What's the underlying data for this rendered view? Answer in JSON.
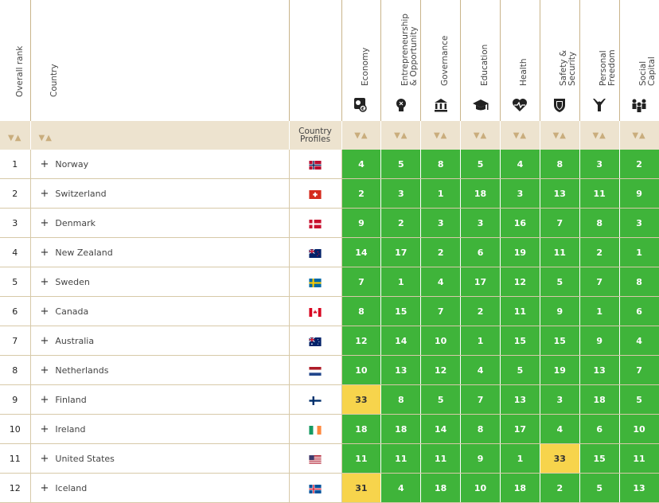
{
  "header": {
    "rank": "Overall rank",
    "country": "Country",
    "profiles": "Country Profiles",
    "sort_arrows": "▼▲"
  },
  "pillars": [
    {
      "label": "Economy",
      "icon": "economy-icon"
    },
    {
      "label": "Entrepreneurship\n& Opportunity",
      "icon": "lightbulb-icon"
    },
    {
      "label": "Governance",
      "icon": "government-building-icon"
    },
    {
      "label": "Education",
      "icon": "graduation-cap-icon"
    },
    {
      "label": "Health",
      "icon": "heart-pulse-icon"
    },
    {
      "label": "Safety &\nSecurity",
      "icon": "shield-icon"
    },
    {
      "label": "Personal\nFreedom",
      "icon": "freedom-person-icon"
    },
    {
      "label": "Social\nCapital",
      "icon": "people-group-icon"
    }
  ],
  "colors": {
    "green": "#3fb43a",
    "yellow": "#f7d44c"
  },
  "rows": [
    {
      "rank": "1",
      "country": "Norway",
      "flag": "norway-flag",
      "scores": [
        "4",
        "5",
        "8",
        "5",
        "4",
        "8",
        "3",
        "2"
      ],
      "highlight": []
    },
    {
      "rank": "2",
      "country": "Switzerland",
      "flag": "switzerland-flag",
      "scores": [
        "2",
        "3",
        "1",
        "18",
        "3",
        "13",
        "11",
        "9"
      ],
      "highlight": []
    },
    {
      "rank": "3",
      "country": "Denmark",
      "flag": "denmark-flag",
      "scores": [
        "9",
        "2",
        "3",
        "3",
        "16",
        "7",
        "8",
        "3"
      ],
      "highlight": []
    },
    {
      "rank": "4",
      "country": "New Zealand",
      "flag": "new-zealand-flag",
      "scores": [
        "14",
        "17",
        "2",
        "6",
        "19",
        "11",
        "2",
        "1"
      ],
      "highlight": []
    },
    {
      "rank": "5",
      "country": "Sweden",
      "flag": "sweden-flag",
      "scores": [
        "7",
        "1",
        "4",
        "17",
        "12",
        "5",
        "7",
        "8"
      ],
      "highlight": []
    },
    {
      "rank": "6",
      "country": "Canada",
      "flag": "canada-flag",
      "scores": [
        "8",
        "15",
        "7",
        "2",
        "11",
        "9",
        "1",
        "6"
      ],
      "highlight": []
    },
    {
      "rank": "7",
      "country": "Australia",
      "flag": "australia-flag",
      "scores": [
        "12",
        "14",
        "10",
        "1",
        "15",
        "15",
        "9",
        "4"
      ],
      "highlight": []
    },
    {
      "rank": "8",
      "country": "Netherlands",
      "flag": "netherlands-flag",
      "scores": [
        "10",
        "13",
        "12",
        "4",
        "5",
        "19",
        "13",
        "7"
      ],
      "highlight": []
    },
    {
      "rank": "9",
      "country": "Finland",
      "flag": "finland-flag",
      "scores": [
        "33",
        "8",
        "5",
        "7",
        "13",
        "3",
        "18",
        "5"
      ],
      "highlight": [
        0
      ]
    },
    {
      "rank": "10",
      "country": "Ireland",
      "flag": "ireland-flag",
      "scores": [
        "18",
        "18",
        "14",
        "8",
        "17",
        "4",
        "6",
        "10"
      ],
      "highlight": []
    },
    {
      "rank": "11",
      "country": "United States",
      "flag": "united-states-flag",
      "scores": [
        "11",
        "11",
        "11",
        "9",
        "1",
        "33",
        "15",
        "11"
      ],
      "highlight": [
        5
      ]
    },
    {
      "rank": "12",
      "country": "Iceland",
      "flag": "iceland-flag",
      "scores": [
        "31",
        "4",
        "18",
        "10",
        "18",
        "2",
        "5",
        "13"
      ],
      "highlight": [
        0
      ]
    }
  ]
}
